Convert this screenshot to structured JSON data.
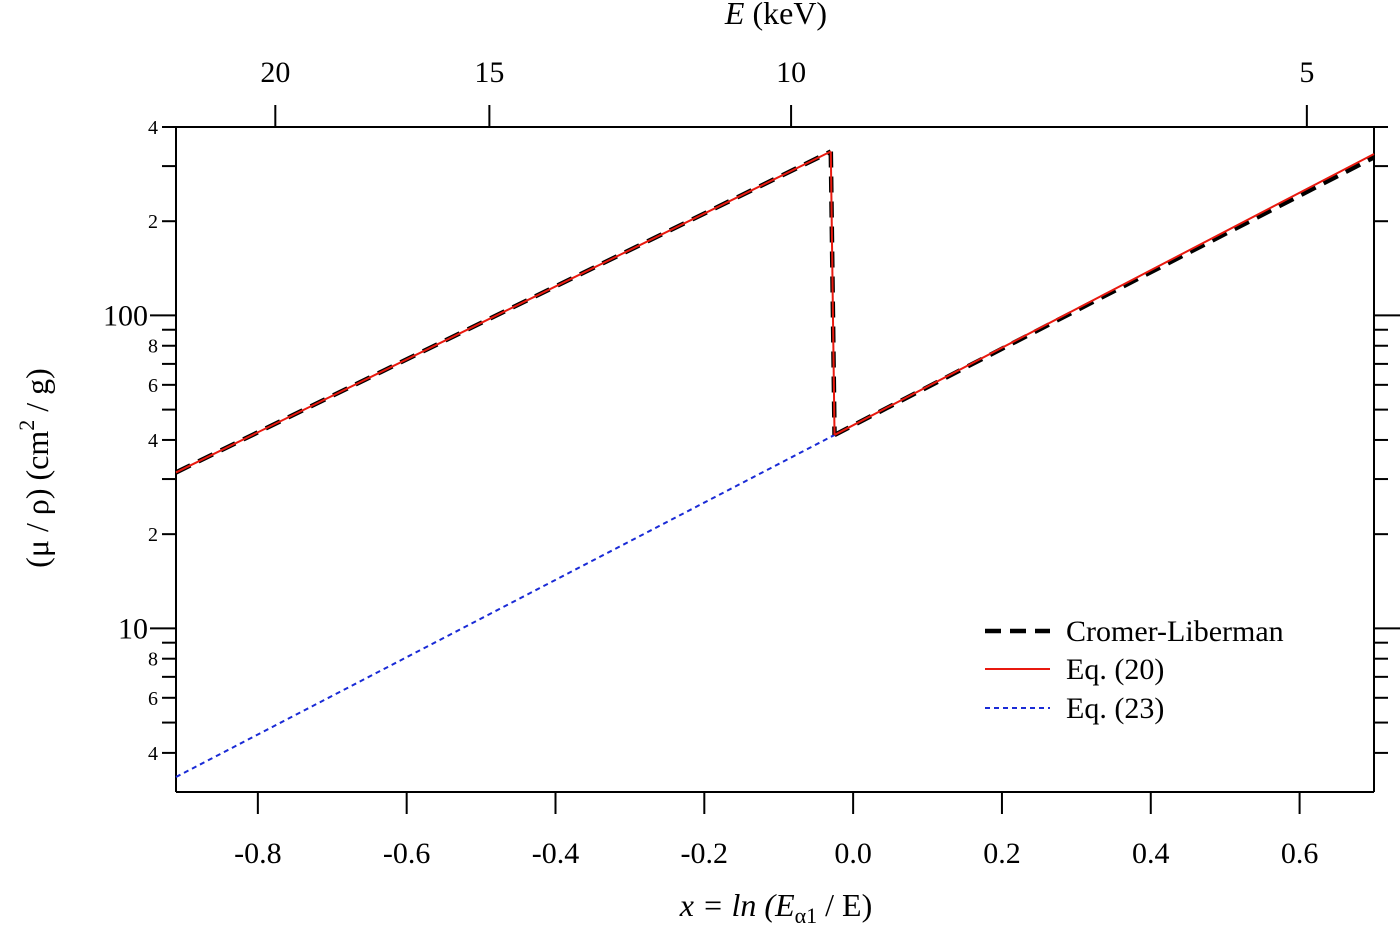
{
  "chart_data": {
    "type": "line",
    "xlabel": {
      "pre": "x = ln (E",
      "sub": "α1",
      "post": " / E)"
    },
    "ylabel": {
      "pre": "(μ / ρ) (cm",
      "sup": "2",
      "post": " / g)"
    },
    "top_axis_label": {
      "italic": "E",
      "rest": " (keV)"
    },
    "top_axis_ticks": [
      "20",
      "15",
      "10",
      "5"
    ],
    "top_axis_values_keV": [
      20,
      15,
      10,
      5
    ],
    "x_tick_labels": [
      "-0.8",
      "-0.6",
      "-0.4",
      "-0.2",
      "0.0",
      "0.2",
      "0.4",
      "0.6"
    ],
    "x_ticks": [
      -0.8,
      -0.6,
      -0.4,
      -0.2,
      0.0,
      0.2,
      0.4,
      0.6
    ],
    "xlim": [
      -0.91,
      0.7
    ],
    "ylim": [
      3,
      400
    ],
    "yscale": "log",
    "y_major_labels": [
      "10",
      "100"
    ],
    "y_major_values": [
      10,
      100
    ],
    "y_minor_labels": [
      "4",
      "6",
      "8",
      "2",
      "4",
      "6",
      "8",
      "2",
      "4"
    ],
    "y_minor_values": [
      4,
      6,
      8,
      20,
      40,
      60,
      80,
      200,
      400
    ],
    "edge_x": -0.03,
    "series": [
      {
        "name": "Cromer-Liberman",
        "color": "#000000",
        "style": "dashed-thick",
        "segments": [
          [
            [
              -0.91,
              31.5
            ],
            [
              -0.03,
              334
            ]
          ],
          [
            [
              -0.03,
              334
            ],
            [
              -0.025,
              41.5
            ]
          ],
          [
            [
              -0.025,
              41.5
            ],
            [
              0.7,
              320
            ]
          ]
        ]
      },
      {
        "name": "Eq. (20)",
        "color": "#e8190f",
        "style": "solid",
        "segments": [
          [
            [
              -0.91,
              31.5
            ],
            [
              -0.03,
              334
            ]
          ],
          [
            [
              -0.03,
              334
            ],
            [
              -0.025,
              41.5
            ]
          ],
          [
            [
              -0.025,
              41.5
            ],
            [
              0.7,
              328
            ]
          ]
        ]
      },
      {
        "name": "Eq. (23)",
        "color": "#1a2bd6",
        "style": "dotted",
        "segments": [
          [
            [
              -0.91,
              3.35
            ],
            [
              -0.025,
              41.5
            ]
          ]
        ]
      }
    ],
    "legend_position": "bottom-right"
  }
}
